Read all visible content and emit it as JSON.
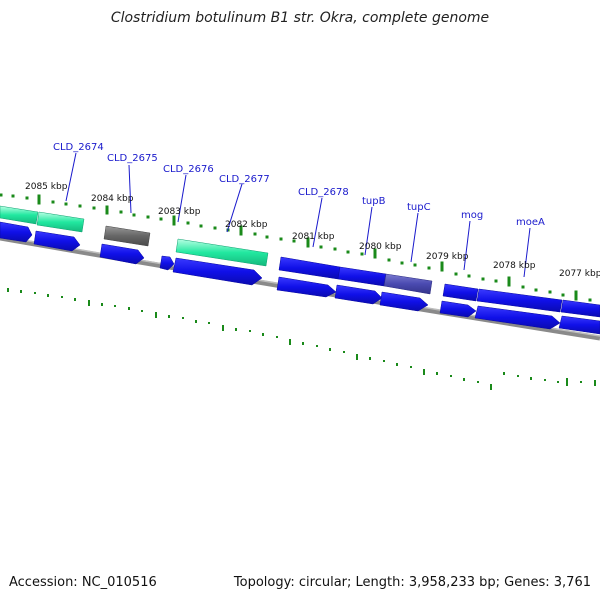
{
  "title": "Clostridium botulinum B1 str. Okra, complete genome",
  "footer": {
    "accession": "Accession: NC_010516",
    "summary": "Topology: circular; Length: 3,958,233 bp; Genes: 3,761"
  },
  "colors": {
    "cds_blue": "#1010e8",
    "rna_green": "#22e8a0",
    "pseudo_gray": "#6a6a6a",
    "purple": "#4a4ab0",
    "backbone": "#8a8a8a",
    "tick_green": "#1a8a1a",
    "label_blue": "#1a1acc"
  },
  "kbp_labels": [
    {
      "text": "2085 kbp"
    },
    {
      "text": "2084 kbp"
    },
    {
      "text": "2083 kbp"
    },
    {
      "text": "2082 kbp"
    },
    {
      "text": "2081 kbp"
    },
    {
      "text": "2080 kbp"
    },
    {
      "text": "2079 kbp"
    },
    {
      "text": "2078 kbp"
    },
    {
      "text": "2077 kbp"
    }
  ],
  "gene_labels": [
    {
      "text": "CLD_2674"
    },
    {
      "text": "CLD_2675"
    },
    {
      "text": "CLD_2676"
    },
    {
      "text": "CLD_2677"
    },
    {
      "text": "CLD_2678"
    },
    {
      "text": "tupB"
    },
    {
      "text": "tupC"
    },
    {
      "text": "mog"
    },
    {
      "text": "moeA"
    }
  ]
}
